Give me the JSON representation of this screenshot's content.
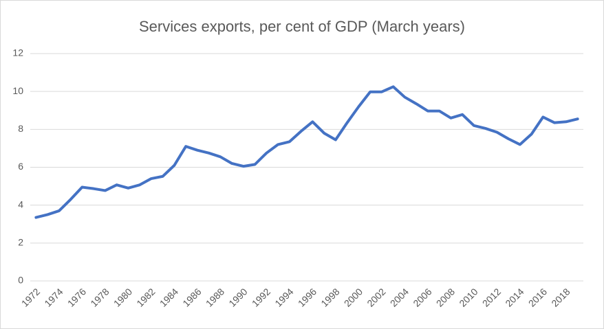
{
  "chart_data": {
    "type": "line",
    "title": "Services exports, per cent of GDP (March years)",
    "categories": [
      1972,
      null,
      1974,
      null,
      1976,
      null,
      1978,
      null,
      1980,
      null,
      1982,
      null,
      1984,
      null,
      1986,
      null,
      1988,
      null,
      1990,
      null,
      1992,
      null,
      1994,
      null,
      1996,
      null,
      1998,
      null,
      2000,
      null,
      2002,
      null,
      2004,
      null,
      2006,
      null,
      2008,
      null,
      2010,
      null,
      2012,
      null,
      2014,
      null,
      2016,
      null,
      2018,
      null
    ],
    "series": [
      {
        "color": "#4472c4",
        "values": [
          3.35,
          3.5,
          3.7,
          4.3,
          4.95,
          4.87,
          4.77,
          5.07,
          4.9,
          5.07,
          5.4,
          5.52,
          6.1,
          7.1,
          6.9,
          6.75,
          6.55,
          6.2,
          6.05,
          6.15,
          6.75,
          7.2,
          7.35,
          7.9,
          8.4,
          7.8,
          7.45,
          8.35,
          9.2,
          9.98,
          9.98,
          10.25,
          9.7,
          9.35,
          8.97,
          8.97,
          8.6,
          8.78,
          8.2,
          8.05,
          7.85,
          7.5,
          7.2,
          7.75,
          8.65,
          8.35,
          8.4,
          8.55
        ]
      }
    ],
    "ylim": [
      0,
      12
    ],
    "yticks": [
      0,
      2,
      4,
      6,
      8,
      10,
      12
    ],
    "grid": true
  }
}
